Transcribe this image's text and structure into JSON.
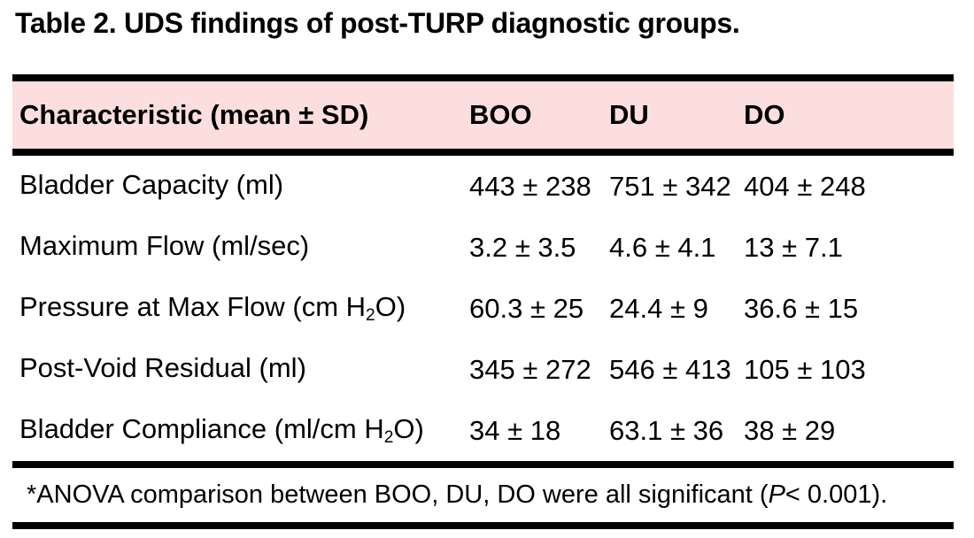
{
  "title": "Table 2. UDS findings of post-TURP diagnostic groups.",
  "colors": {
    "background": "#ffffff",
    "header_bg": "#fcdede",
    "rule": "#000000",
    "text": "#000000"
  },
  "table": {
    "header": {
      "characteristic": "Characteristic (mean ± SD)",
      "boo": "BOO",
      "du": "DU",
      "do": "DO"
    },
    "rows": [
      {
        "label": {
          "pre": "Bladder Capacity (ml)",
          "sub": "",
          "post": ""
        },
        "values": {
          "boo": "443 ± 238",
          "du": "751 ± 342",
          "do": "404 ± 248"
        }
      },
      {
        "label": {
          "pre": "Maximum Flow (ml/sec)",
          "sub": "",
          "post": ""
        },
        "values": {
          "boo": "3.2 ± 3.5",
          "du": "4.6 ± 4.1",
          "do": "13 ± 7.1"
        }
      },
      {
        "label": {
          "pre": "Pressure at Max Flow (cm H",
          "sub": "2",
          "post": "O)"
        },
        "values": {
          "boo": "60.3 ± 25",
          "du": "24.4 ± 9",
          "do": "36.6 ± 15"
        }
      },
      {
        "label": {
          "pre": "Post-Void Residual (ml)",
          "sub": "",
          "post": ""
        },
        "values": {
          "boo": "345 ± 272",
          "du": "546 ± 413",
          "do": "105 ± 103"
        }
      },
      {
        "label": {
          "pre": "Bladder Compliance (ml/cm H",
          "sub": "2",
          "post": "O)"
        },
        "values": {
          "boo": "34 ± 18",
          "du": "63.1 ± 36",
          "do": "38 ± 29"
        }
      }
    ],
    "footnote": {
      "pre": "*ANOVA comparison between BOO, DU, DO were all significant (",
      "stat": "P",
      "post": " < 0.001)."
    }
  }
}
